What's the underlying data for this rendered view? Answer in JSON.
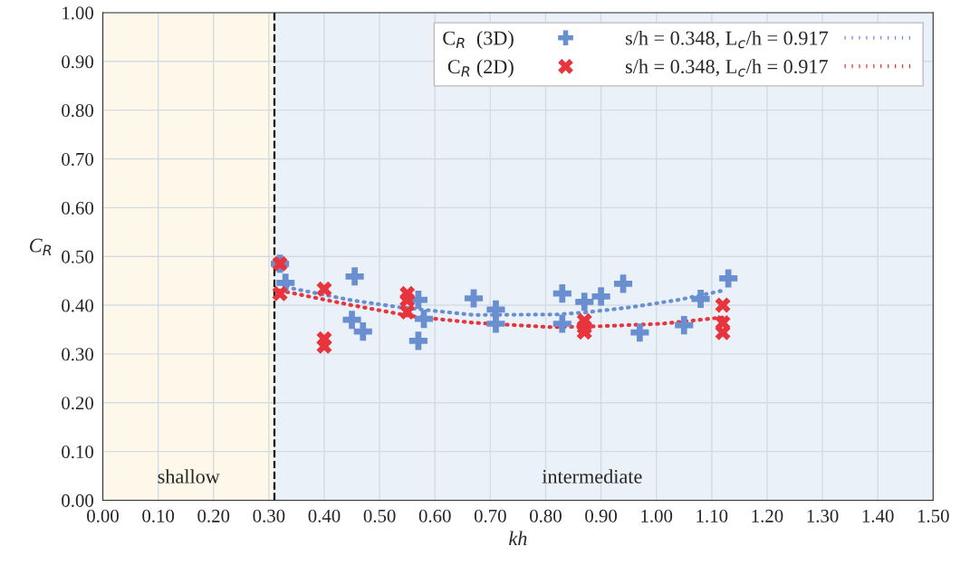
{
  "chart_data": {
    "type": "scatter",
    "xlabel": "kh",
    "ylabel": "C$_{R}$",
    "xlim": [
      0,
      1.5
    ],
    "ylim": [
      0,
      1
    ],
    "xticks": [
      {
        "value": 0,
        "label": "0.00"
      },
      {
        "value": 0.1,
        "label": "0.10"
      },
      {
        "value": 0.2,
        "label": "0.20"
      },
      {
        "value": 0.3,
        "label": "0.30"
      },
      {
        "value": 0.4,
        "label": "0.40"
      },
      {
        "value": 0.5,
        "label": "0.50"
      },
      {
        "value": 0.6,
        "label": "0.60"
      },
      {
        "value": 0.7,
        "label": "0.70"
      },
      {
        "value": 0.8,
        "label": "0.80"
      },
      {
        "value": 0.9,
        "label": "0.90"
      },
      {
        "value": 1.0,
        "label": "1.00"
      },
      {
        "value": 1.1,
        "label": "1.10"
      },
      {
        "value": 1.2,
        "label": "1.20"
      },
      {
        "value": 1.3,
        "label": "1.30"
      },
      {
        "value": 1.4,
        "label": "1.40"
      },
      {
        "value": 1.5,
        "label": "1.50"
      }
    ],
    "yticks": [
      {
        "value": 0,
        "label": "0.00"
      },
      {
        "value": 0.1,
        "label": "0.10"
      },
      {
        "value": 0.2,
        "label": "0.20"
      },
      {
        "value": 0.3,
        "label": "0.30"
      },
      {
        "value": 0.4,
        "label": "0.40"
      },
      {
        "value": 0.5,
        "label": "0.50"
      },
      {
        "value": 0.6,
        "label": "0.60"
      },
      {
        "value": 0.7,
        "label": "0.70"
      },
      {
        "value": 0.8,
        "label": "0.80"
      },
      {
        "value": 0.9,
        "label": "0.90"
      },
      {
        "value": 1.0,
        "label": "1.00"
      }
    ],
    "grid": true,
    "legend": "top right",
    "bands": [
      {
        "axis": "x",
        "from": 0,
        "to": 0.31,
        "label": "shallow",
        "color": "#fdf8e9"
      },
      {
        "axis": "x",
        "from": 0.31,
        "to": 1.5,
        "label": "intermediate",
        "color": "#eaf1f8"
      }
    ],
    "ref_lines": [
      {
        "axis": "x",
        "value": 0.31,
        "line_style": "dashed",
        "color": "#000000"
      }
    ],
    "series": [
      {
        "name": "C$_{R}$  (3D)",
        "marker": "cross",
        "color": "#6a8fd0",
        "x": [
          0.32,
          0.33,
          0.455,
          0.45,
          0.47,
          0.57,
          0.58,
          0.57,
          0.67,
          0.71,
          0.71,
          0.83,
          0.83,
          0.87,
          0.9,
          0.94,
          0.97,
          1.05,
          1.08,
          1.13
        ],
        "values": [
          0.485,
          0.446,
          0.459,
          0.37,
          0.346,
          0.411,
          0.372,
          0.327,
          0.414,
          0.391,
          0.362,
          0.424,
          0.362,
          0.407,
          0.418,
          0.444,
          0.344,
          0.359,
          0.413,
          0.455
        ]
      },
      {
        "name": "C$_{R}$ (2D)",
        "marker": "x",
        "color": "#e8343c",
        "x": [
          0.32,
          0.32,
          0.4,
          0.4,
          0.4,
          0.55,
          0.55,
          0.55,
          0.87,
          0.87,
          0.87,
          1.12,
          1.12,
          1.12
        ],
        "values": [
          0.485,
          0.424,
          0.433,
          0.331,
          0.316,
          0.424,
          0.411,
          0.386,
          0.368,
          0.355,
          0.345,
          0.4,
          0.364,
          0.344
        ]
      },
      {
        "name": "s/h = 0.348, L$_{c}$/h = 0.917",
        "type": "line",
        "line_style": "dotted",
        "color": "#6a8fd0",
        "x": [
          0.32,
          0.34,
          0.45,
          0.535,
          0.67,
          0.82,
          0.87,
          0.955,
          1.04,
          1.12
        ],
        "values": [
          0.445,
          0.435,
          0.41,
          0.396,
          0.38,
          0.381,
          0.385,
          0.396,
          0.411,
          0.43
        ]
      },
      {
        "name": "s/h = 0.348, L$_{c}$/h = 0.917",
        "type": "line",
        "line_style": "dotted",
        "color": "#e8343c",
        "x": [
          0.32,
          0.45,
          0.56,
          0.67,
          0.81,
          0.9,
          1.01,
          1.12
        ],
        "values": [
          0.43,
          0.4,
          0.377,
          0.364,
          0.355,
          0.357,
          0.362,
          0.375
        ]
      }
    ]
  }
}
